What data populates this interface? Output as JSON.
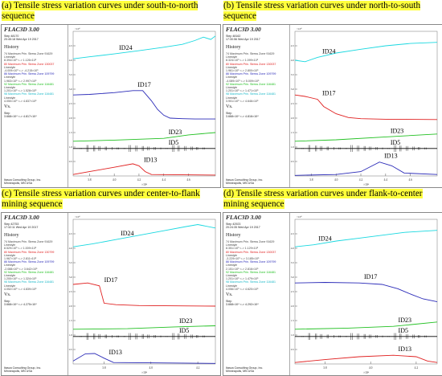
{
  "panels": [
    {
      "caption": "(a) Tensile stress variation curves under south-to-north sequence",
      "flac_title": "FLAC3D 3.00",
      "step_line": "Step 48170",
      "time_line": "20:45:18 Wed Apr 19 2017",
      "history_label": "History",
      "series_text": [
        "74 Maximum Prin. Stress Zone 91629",
        "Linestyle",
        "8.394×10³ <-> 1.126×10⁶",
        "80 Maximum Prin. Stress Zone 130037",
        "Linestyle",
        "-4.009×10³ <-> -4.215×10⁶",
        "86 Maximum Prin. Stress Zone 109799",
        "Linestyle",
        "1.963×10⁵ <-> 2.997×10⁶",
        "92 Maximum Prin. Stress Zone 116481",
        "Linestyle",
        "1.201×10⁶ <-> 1.528×10⁶",
        "98 Maximum Prin. Stress Zone 116481",
        "Linestyle",
        "4.050×10⁶ <-> 4.837×10⁶"
      ],
      "vs_label": "Vs.",
      "step_label": "Step",
      "step_range": "3.668×10⁴ <-> 4.817×10⁴",
      "footer": [
        "Itasca Consulting Group, Inc.",
        "Minneapolis, MN USA"
      ],
      "exponent": "×10⁴",
      "x_ticks": [
        "3.8",
        "4.0",
        "4.2",
        "4.4",
        "4.6"
      ],
      "x_exponent": "×10⁴"
    },
    {
      "caption": "(b) Tensile stress variation curves under north-to-south sequence",
      "flac_title": "FLAC3D 3.00",
      "step_line": "Step 48162",
      "time_line": "17:30:56 Wed Apr 19 2017",
      "history_label": "History",
      "series_text": [
        "74 Maximum Prin. Stress Zone 91629",
        "Linestyle",
        "8.324×10³ <-> 1.099×10⁶",
        "80 Maximum Prin. Stress Zone 130037",
        "Linestyle",
        "1.961×10⁵ <-> 2.800×10⁶",
        "86 Maximum Prin. Stress Zone 109799",
        "Linestyle",
        "-4.089×10³ <-> 5.009×10⁵",
        "92 Maximum Prin. Stress Zone 116481",
        "Linestyle",
        "1.201×10⁶ <-> 1.471×10⁶",
        "98 Maximum Prin. Stress Zone 116481",
        "Linestyle",
        "3.901×10⁶ <-> 4.646×10⁶"
      ],
      "vs_label": "Vs.",
      "step_label": "Step",
      "step_range": "3.668×10⁴ <-> 4.816×10⁴",
      "footer": [
        "Itasca Consulting Group, Inc.",
        "Minneapolis, MN USA"
      ],
      "exponent": "×10⁴",
      "x_ticks": [
        "3.8",
        "4.0",
        "4.2",
        "4.4",
        "4.6"
      ],
      "x_exponent": "×10⁴"
    },
    {
      "caption": "(c) Tensile stress variation curves under center-to-flank mining sequence",
      "flac_title": "FLAC3D 3.00",
      "step_line": "Step 42753",
      "time_line": "17:32:11 Wed Apr 19 2017",
      "history_label": "History",
      "series_text": [
        "74 Maximum Prin. Stress Zone 91629",
        "Linestyle",
        "8.529×10³ <-> 1.009×10⁶",
        "80 Maximum Prin. Stress Zone 130799",
        "Linestyle",
        "1.967×10⁵ <-> 2.811×10⁶",
        "86 Maximum Prin. Stress Zone 109799",
        "Linestyle",
        "-2.088×10³ <-> 3.642×10⁵",
        "92 Maximum Prin. Stress Zone 116481",
        "Linestyle",
        "1.200×10⁶ <-> 1.324×10⁶",
        "98 Maximum Prin. Stress Zone 116481",
        "Linestyle",
        "4.052×10⁶ <-> 4.839×10⁶"
      ],
      "vs_label": "Vs.",
      "step_label": "Step",
      "step_range": "3.668×10⁴ <-> 4.275×10⁴",
      "footer": [
        "Itasca Consulting Group, Inc.",
        "Minneapolis, MN USA"
      ],
      "exponent": "×10⁴",
      "x_ticks": [
        "3.8",
        "4.0",
        "4.2"
      ],
      "x_exponent": "×10⁴"
    },
    {
      "caption": "(d) Tensile stress variation curves under flank-to-center mining sequence",
      "flac_title": "FLAC3D 3.00",
      "step_line": "Step 42923",
      "time_line": "20:24:35 Wed Apr 19 2017",
      "history_label": "History",
      "series_text": [
        "74 Maximum Prin. Stress Zone 91629",
        "Linestyle",
        "8.351×10³ <-> 1.129×10⁶",
        "80 Maximum Prin. Stress Zone 130037",
        "Linestyle",
        "-3.229×10³ <-> 3.185×10⁵",
        "86 Maximum Prin. Stress Zone 109799",
        "Linestyle",
        "2.151×10⁵ <-> 2.816×10⁶",
        "92 Maximum Prin. Stress Zone 116481",
        "Linestyle",
        "1.201×10⁶ <-> 1.479×10⁶",
        "98 Maximum Prin. Stress Zone 116481",
        "Linestyle",
        "4.056×10⁶ <-> 4.620×10⁶"
      ],
      "vs_label": "Vs.",
      "step_label": "Step",
      "step_range": "3.668×10⁴ <-> 4.292×10⁴",
      "footer": [
        "Itasca Consulting Group, Inc.",
        "Minneapolis, MN USA"
      ],
      "exponent": "×10⁴",
      "x_ticks": [
        "3.8",
        "4.0",
        "4.2"
      ],
      "x_exponent": "×10⁴"
    }
  ],
  "chart_data": [
    {
      "type": "line",
      "title": "(a) Tensile stress variation curves under south-to-north sequence",
      "x_range": [
        36680,
        48170
      ],
      "y_ticks": [
        0.5,
        1.0,
        1.5,
        2.0,
        2.5,
        3.0,
        3.5,
        4.0,
        4.5
      ],
      "ylim": [
        0,
        5
      ],
      "colors": {
        "ID24": "#19d8e0",
        "ID17": "#2b2bb8",
        "ID23": "#22c022",
        "ID5": "#000000",
        "ID13": "#e02020"
      },
      "series": [
        {
          "name": "ID24",
          "x": [
            36680,
            38000,
            40000,
            42000,
            44000,
            45500,
            46500,
            47200,
            47800,
            48170
          ],
          "y": [
            4.05,
            4.12,
            4.22,
            4.33,
            4.45,
            4.55,
            4.68,
            4.8,
            4.72,
            4.84
          ]
        },
        {
          "name": "ID17",
          "x": [
            36680,
            38000,
            40000,
            41500,
            42300,
            43000,
            43500,
            44000,
            44500,
            45500,
            46500,
            48170
          ],
          "y": [
            2.8,
            2.82,
            2.88,
            2.95,
            2.95,
            2.6,
            2.3,
            2.1,
            2.0,
            1.98,
            1.97,
            1.97
          ]
        },
        {
          "name": "ID23",
          "x": [
            36680,
            40000,
            44000,
            46000,
            48170
          ],
          "y": [
            1.2,
            1.24,
            1.3,
            1.42,
            1.5
          ]
        },
        {
          "name": "ID5",
          "x": [
            36680,
            40000,
            44000,
            48170
          ],
          "y": [
            0.95,
            0.95,
            0.95,
            0.95
          ]
        },
        {
          "name": "ID13",
          "x": [
            36680,
            38000,
            40000,
            41500,
            42000,
            42500,
            43000,
            48170
          ],
          "y": [
            0.05,
            0.15,
            0.3,
            0.42,
            0.35,
            0.15,
            0.05,
            0.03
          ]
        }
      ]
    },
    {
      "type": "line",
      "title": "(b) Tensile stress variation curves under north-to-south sequence",
      "x_range": [
        36680,
        48160
      ],
      "y_ticks": [
        0.5,
        1.0,
        1.5,
        2.0,
        2.5,
        3.0,
        3.5,
        4.0,
        4.5
      ],
      "ylim": [
        0,
        5
      ],
      "colors": {
        "ID24": "#19d8e0",
        "ID17": "#e02020",
        "ID23": "#22c022",
        "ID5": "#000000",
        "ID13": "#2b2bb8"
      },
      "series": [
        {
          "name": "ID24",
          "x": [
            36680,
            37500,
            38500,
            40000,
            42000,
            44000,
            46000,
            48160
          ],
          "y": [
            4.0,
            3.95,
            4.1,
            4.25,
            4.38,
            4.5,
            4.58,
            4.62
          ]
        },
        {
          "name": "ID17",
          "x": [
            36680,
            37500,
            38500,
            39000,
            40000,
            41000,
            42000,
            44000,
            48160
          ],
          "y": [
            2.8,
            2.75,
            2.65,
            2.4,
            2.15,
            2.02,
            1.98,
            1.96,
            1.95
          ]
        },
        {
          "name": "ID23",
          "x": [
            36680,
            40000,
            44000,
            48160
          ],
          "y": [
            1.2,
            1.25,
            1.35,
            1.45
          ]
        },
        {
          "name": "ID5",
          "x": [
            36680,
            40000,
            44000,
            48160
          ],
          "y": [
            0.95,
            0.95,
            0.95,
            0.95
          ]
        },
        {
          "name": "ID13",
          "x": [
            36680,
            40000,
            42000,
            43500,
            44500,
            45500,
            48160
          ],
          "y": [
            0.02,
            0.05,
            0.15,
            0.48,
            0.35,
            0.1,
            0.05
          ]
        }
      ]
    },
    {
      "type": "line",
      "title": "(c) Tensile stress variation curves under center-to-flank mining sequence",
      "x_range": [
        36680,
        42750
      ],
      "y_ticks": [
        0.5,
        1.0,
        1.5,
        2.0,
        2.5,
        3.0,
        3.5,
        4.0,
        4.5
      ],
      "ylim": [
        0,
        5
      ],
      "colors": {
        "ID24": "#19d8e0",
        "ID17": "#e02020",
        "ID23": "#22c022",
        "ID5": "#000000",
        "ID13": "#2b2bb8"
      },
      "series": [
        {
          "name": "ID24",
          "x": [
            36680,
            37500,
            38500,
            39500,
            40500,
            41500,
            42000,
            42750
          ],
          "y": [
            4.05,
            4.15,
            4.3,
            4.45,
            4.6,
            4.75,
            4.82,
            4.7
          ]
        },
        {
          "name": "ID17",
          "x": [
            36680,
            37300,
            37800,
            38000,
            38500,
            39500,
            42750
          ],
          "y": [
            2.75,
            2.8,
            2.7,
            2.1,
            2.05,
            2.02,
            2.0
          ]
        },
        {
          "name": "ID23",
          "x": [
            36680,
            39000,
            41000,
            42750
          ],
          "y": [
            1.2,
            1.22,
            1.28,
            1.32
          ]
        },
        {
          "name": "ID5",
          "x": [
            36680,
            39000,
            41000,
            42750
          ],
          "y": [
            0.95,
            0.95,
            0.95,
            0.95
          ]
        },
        {
          "name": "ID13",
          "x": [
            36680,
            37200,
            37600,
            38000,
            38400,
            42750
          ],
          "y": [
            0.1,
            0.35,
            0.36,
            0.2,
            0.05,
            0.02
          ]
        }
      ]
    },
    {
      "type": "line",
      "title": "(d) Tensile stress variation curves under flank-to-center mining sequence",
      "x_range": [
        36680,
        42920
      ],
      "y_ticks": [
        0.5,
        1.0,
        1.5,
        2.0,
        2.5,
        3.0,
        3.5,
        4.0,
        4.5
      ],
      "ylim": [
        0,
        5
      ],
      "colors": {
        "ID24": "#19d8e0",
        "ID17": "#2b2bb8",
        "ID23": "#22c022",
        "ID5": "#000000",
        "ID13": "#e02020"
      },
      "series": [
        {
          "name": "ID24",
          "x": [
            36680,
            37500,
            38500,
            39500,
            40500,
            41500,
            42920
          ],
          "y": [
            4.05,
            4.12,
            4.25,
            4.35,
            4.45,
            4.55,
            4.62
          ]
        },
        {
          "name": "ID17",
          "x": [
            36680,
            38000,
            39500,
            40500,
            41200,
            41800,
            42300,
            42920
          ],
          "y": [
            2.8,
            2.82,
            2.8,
            2.75,
            2.6,
            2.4,
            2.25,
            2.15
          ]
        },
        {
          "name": "ID23",
          "x": [
            36680,
            39000,
            41000,
            42920
          ],
          "y": [
            1.2,
            1.24,
            1.3,
            1.45
          ]
        },
        {
          "name": "ID5",
          "x": [
            36680,
            39000,
            41000,
            42920
          ],
          "y": [
            0.95,
            0.95,
            0.95,
            0.95
          ]
        },
        {
          "name": "ID13",
          "x": [
            36680,
            38000,
            39500,
            41000,
            42000,
            42500,
            42920
          ],
          "y": [
            0.05,
            0.15,
            0.25,
            0.3,
            0.25,
            0.1,
            0.05
          ]
        }
      ]
    }
  ]
}
